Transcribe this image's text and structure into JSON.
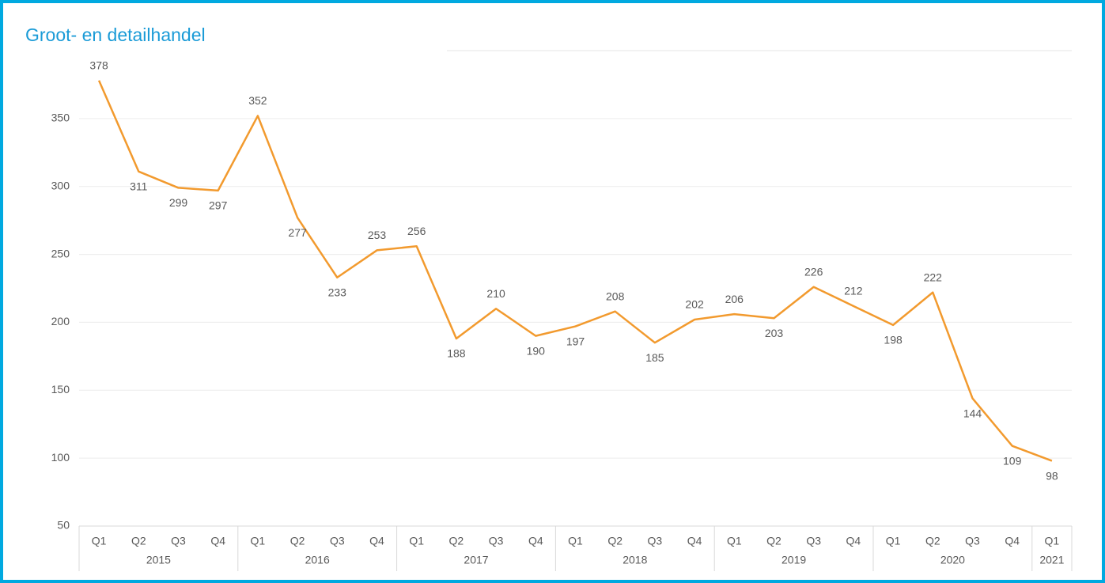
{
  "chart_data": {
    "type": "line",
    "title": "Groot- en detailhandel",
    "categories": [
      "Q1",
      "Q2",
      "Q3",
      "Q4",
      "Q1",
      "Q2",
      "Q3",
      "Q4",
      "Q1",
      "Q2",
      "Q3",
      "Q4",
      "Q1",
      "Q2",
      "Q3",
      "Q4",
      "Q1",
      "Q2",
      "Q3",
      "Q4",
      "Q1",
      "Q2",
      "Q3",
      "Q4",
      "Q1"
    ],
    "years": [
      "2015",
      null,
      null,
      null,
      "2016",
      null,
      null,
      null,
      "2017",
      null,
      null,
      null,
      "2018",
      null,
      null,
      null,
      "2019",
      null,
      null,
      null,
      "2020",
      null,
      null,
      null,
      "2021"
    ],
    "values": [
      378,
      311,
      299,
      297,
      352,
      277,
      233,
      253,
      256,
      188,
      210,
      190,
      197,
      208,
      185,
      202,
      206,
      203,
      226,
      212,
      198,
      222,
      144,
      109,
      98
    ],
    "color": "#f29a2e",
    "ylim": [
      50,
      400
    ],
    "yticks": [
      50,
      100,
      150,
      200,
      250,
      300,
      350
    ],
    "grid": true
  }
}
